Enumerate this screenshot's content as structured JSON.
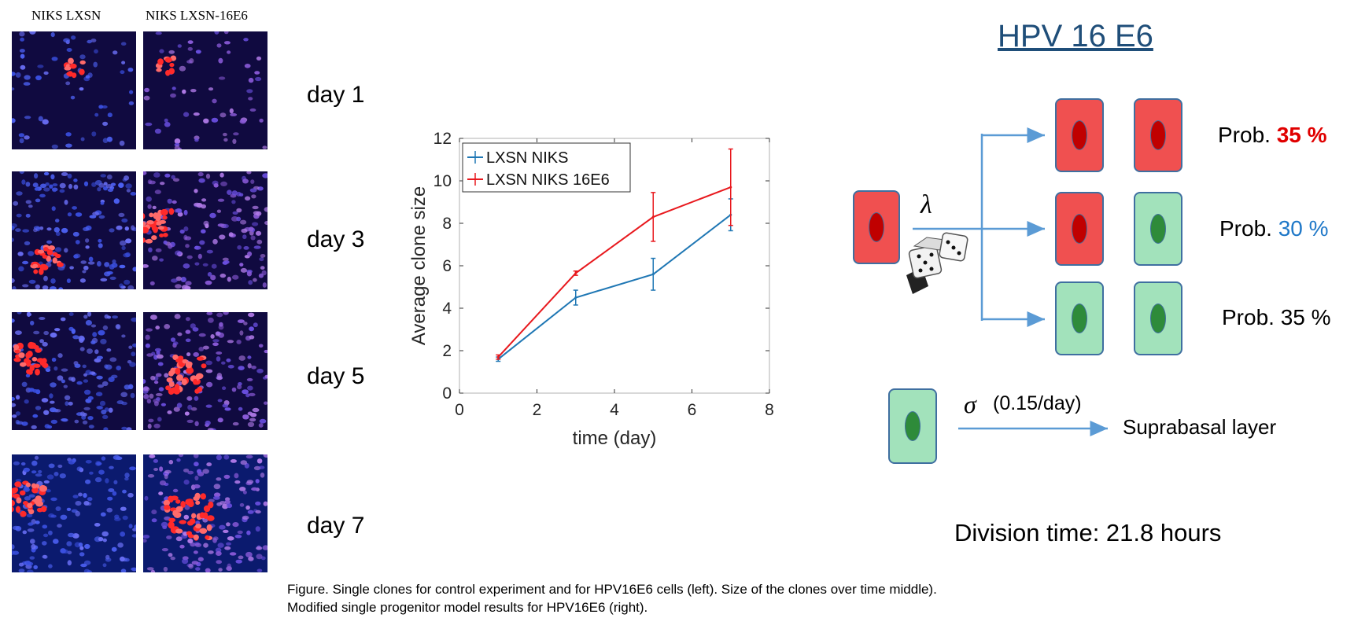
{
  "figure": {
    "left_panel": {
      "column_titles": [
        "NIKS LXSN",
        "NIKS LXSN-16E6"
      ],
      "day_labels": [
        "day 1",
        "day 3",
        "day 5",
        "day 7"
      ]
    },
    "caption": "Figure. Single clones for control experiment and for HPV16E6 cells (left). Size of the clones over time middle). Modified single progenitor model results for HPV16E6 (right).",
    "model": {
      "title": "HPV 16 E6",
      "lambda_symbol": "λ",
      "sigma_symbol": "σ",
      "sigma_rate": "(0.15/day)",
      "suprabasal_label": "Suprabasal layer",
      "division_time": "Division time: 21.8 hours",
      "outcomes": [
        {
          "prefix": "Prob. ",
          "value": "35 %",
          "value_color": "#e00000",
          "bold": true,
          "daughters": [
            "red",
            "red"
          ]
        },
        {
          "prefix": "Prob. ",
          "value": "30 %",
          "value_color": "#1f78c8",
          "bold": false,
          "daughters": [
            "red",
            "green"
          ]
        },
        {
          "prefix": "Prob. ",
          "value": "35 %",
          "value_color": "#000000",
          "bold": false,
          "daughters": [
            "green",
            "green"
          ]
        }
      ],
      "colors": {
        "red_cell": "#f05050",
        "green_cell": "#a2e2bb",
        "arrow": "#5b9bd5"
      }
    }
  },
  "chart_data": {
    "type": "line",
    "xlabel": "time (day)",
    "ylabel": "Average clone size",
    "xlim": [
      0,
      8
    ],
    "ylim": [
      0,
      12
    ],
    "xticks": [
      0,
      2,
      4,
      6,
      8
    ],
    "yticks": [
      0,
      2,
      4,
      6,
      8,
      10,
      12
    ],
    "legend_position": "top-left",
    "x": [
      1,
      3,
      5,
      7
    ],
    "series": [
      {
        "name": "LXSN NIKS",
        "color": "#1f77b4",
        "values": [
          1.6,
          4.5,
          5.6,
          8.4
        ],
        "err": [
          0.1,
          0.35,
          0.75,
          0.75
        ]
      },
      {
        "name": "LXSN NIKS 16E6",
        "color": "#e8191e",
        "values": [
          1.7,
          5.65,
          8.3,
          9.7
        ],
        "err": [
          0.1,
          0.1,
          1.15,
          1.8
        ]
      }
    ]
  }
}
